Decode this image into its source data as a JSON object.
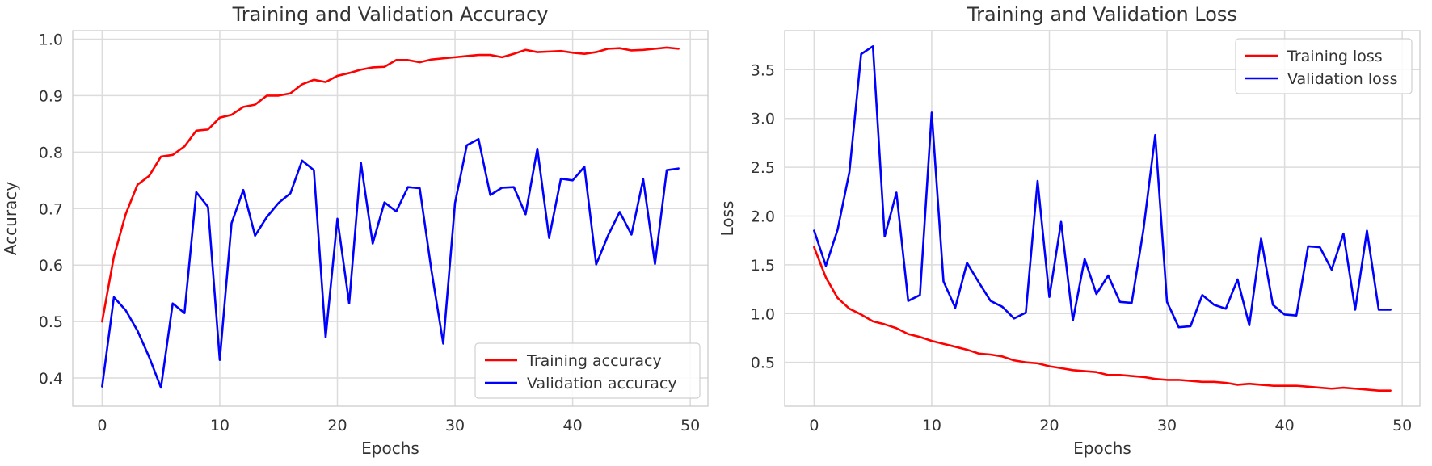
{
  "chart_data": [
    {
      "type": "line",
      "title": "Training and Validation Accuracy",
      "xlabel": "Epochs",
      "ylabel": "Accuracy",
      "xlim": [
        -2.5,
        51.5
      ],
      "ylim": [
        0.35,
        1.015
      ],
      "xticks": [
        0,
        10,
        20,
        30,
        40,
        50
      ],
      "yticks": [
        0.4,
        0.5,
        0.6,
        0.7,
        0.8,
        0.9,
        1.0
      ],
      "ytick_labels": [
        "0.4",
        "0.5",
        "0.6",
        "0.7",
        "0.8",
        "0.9",
        "1.0"
      ],
      "grid": true,
      "legend": "lower-right",
      "x": [
        0,
        1,
        2,
        3,
        4,
        5,
        6,
        7,
        8,
        9,
        10,
        11,
        12,
        13,
        14,
        15,
        16,
        17,
        18,
        19,
        20,
        21,
        22,
        23,
        24,
        25,
        26,
        27,
        28,
        29,
        30,
        31,
        32,
        33,
        34,
        35,
        36,
        37,
        38,
        39,
        40,
        41,
        42,
        43,
        44,
        45,
        46,
        47,
        48,
        49
      ],
      "series": [
        {
          "name": "Training accuracy",
          "color": "#ff0000",
          "values": [
            0.5,
            0.615,
            0.69,
            0.742,
            0.758,
            0.792,
            0.795,
            0.81,
            0.838,
            0.84,
            0.861,
            0.866,
            0.88,
            0.884,
            0.9,
            0.9,
            0.904,
            0.92,
            0.928,
            0.924,
            0.935,
            0.94,
            0.946,
            0.95,
            0.951,
            0.963,
            0.963,
            0.959,
            0.964,
            0.966,
            0.968,
            0.97,
            0.972,
            0.972,
            0.968,
            0.974,
            0.981,
            0.977,
            0.978,
            0.979,
            0.976,
            0.974,
            0.977,
            0.983,
            0.984,
            0.98,
            0.981,
            0.983,
            0.985,
            0.983
          ]
        },
        {
          "name": "Validation accuracy",
          "color": "#0000ff",
          "values": [
            0.385,
            0.543,
            0.52,
            0.484,
            0.437,
            0.383,
            0.532,
            0.515,
            0.729,
            0.703,
            0.432,
            0.674,
            0.733,
            0.652,
            0.685,
            0.71,
            0.727,
            0.785,
            0.768,
            0.472,
            0.682,
            0.532,
            0.781,
            0.638,
            0.711,
            0.695,
            0.738,
            0.736,
            0.59,
            0.461,
            0.71,
            0.812,
            0.823,
            0.724,
            0.737,
            0.738,
            0.69,
            0.806,
            0.648,
            0.753,
            0.75,
            0.774,
            0.601,
            0.652,
            0.694,
            0.654,
            0.752,
            0.602,
            0.768,
            0.771
          ]
        }
      ]
    },
    {
      "type": "line",
      "title": "Training and Validation Loss",
      "xlabel": "Epochs",
      "ylabel": "Loss",
      "xlim": [
        -2.5,
        51.5
      ],
      "ylim": [
        0.05,
        3.9
      ],
      "xticks": [
        0,
        10,
        20,
        30,
        40,
        50
      ],
      "yticks": [
        0.5,
        1.0,
        1.5,
        2.0,
        2.5,
        3.0,
        3.5
      ],
      "ytick_labels": [
        "0.5",
        "1.0",
        "1.5",
        "2.0",
        "2.5",
        "3.0",
        "3.5"
      ],
      "grid": true,
      "legend": "upper-right",
      "x": [
        0,
        1,
        2,
        3,
        4,
        5,
        6,
        7,
        8,
        9,
        10,
        11,
        12,
        13,
        14,
        15,
        16,
        17,
        18,
        19,
        20,
        21,
        22,
        23,
        24,
        25,
        26,
        27,
        28,
        29,
        30,
        31,
        32,
        33,
        34,
        35,
        36,
        37,
        38,
        39,
        40,
        41,
        42,
        43,
        44,
        45,
        46,
        47,
        48,
        49
      ],
      "series": [
        {
          "name": "Training loss",
          "color": "#ff0000",
          "values": [
            1.68,
            1.37,
            1.16,
            1.05,
            0.99,
            0.92,
            0.89,
            0.85,
            0.79,
            0.76,
            0.72,
            0.69,
            0.66,
            0.63,
            0.59,
            0.58,
            0.56,
            0.52,
            0.5,
            0.49,
            0.46,
            0.44,
            0.42,
            0.41,
            0.4,
            0.37,
            0.37,
            0.36,
            0.35,
            0.33,
            0.32,
            0.32,
            0.31,
            0.3,
            0.3,
            0.29,
            0.27,
            0.28,
            0.27,
            0.26,
            0.26,
            0.26,
            0.25,
            0.24,
            0.23,
            0.24,
            0.23,
            0.22,
            0.21,
            0.21
          ]
        },
        {
          "name": "Validation loss",
          "color": "#0000ff",
          "values": [
            1.85,
            1.49,
            1.86,
            2.45,
            3.66,
            3.74,
            1.79,
            2.24,
            1.13,
            1.19,
            3.06,
            1.33,
            1.06,
            1.52,
            1.32,
            1.13,
            1.07,
            0.95,
            1.01,
            2.36,
            1.17,
            1.94,
            0.93,
            1.56,
            1.2,
            1.39,
            1.12,
            1.11,
            1.86,
            2.83,
            1.12,
            0.86,
            0.87,
            1.19,
            1.09,
            1.05,
            1.35,
            0.88,
            1.77,
            1.09,
            0.99,
            0.98,
            1.69,
            1.68,
            1.45,
            1.82,
            1.04,
            1.85,
            1.04,
            1.04
          ]
        }
      ]
    }
  ]
}
